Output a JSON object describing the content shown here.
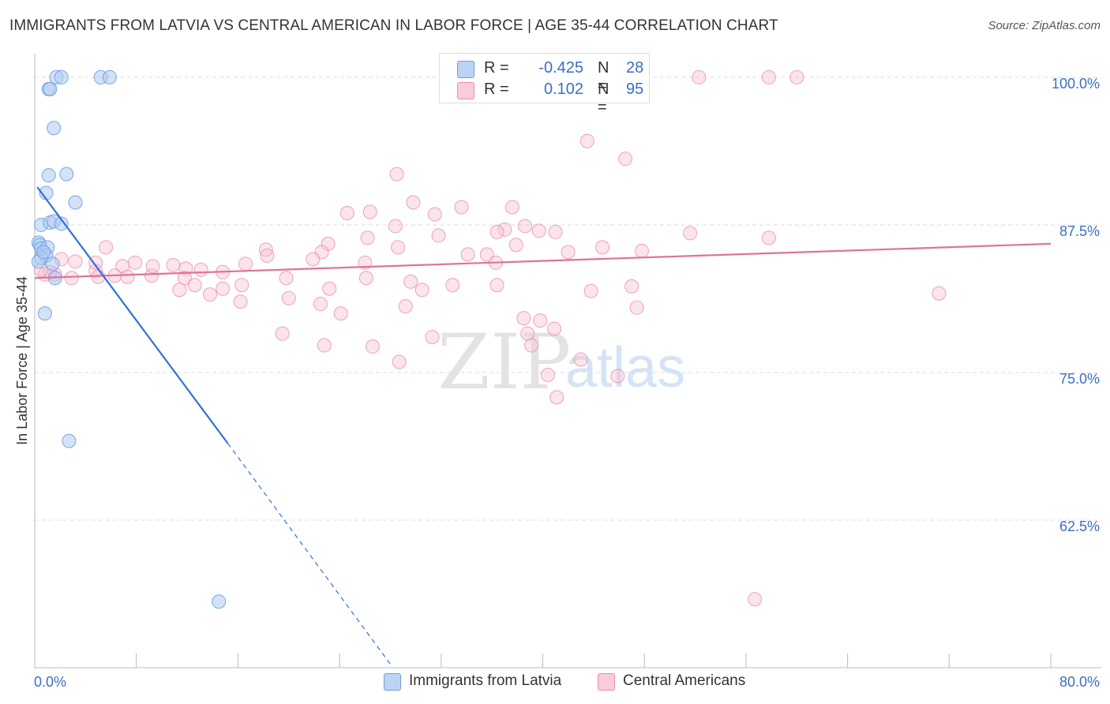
{
  "header": {
    "title": "IMMIGRANTS FROM LATVIA VS CENTRAL AMERICAN IN LABOR FORCE | AGE 35-44 CORRELATION CHART",
    "source": "Source: ZipAtlas.com"
  },
  "watermark": {
    "zip": "ZIP",
    "atlas": "atlas"
  },
  "legend": {
    "rows": [
      {
        "r_label": "R =",
        "r_value": "-0.425",
        "n_label": "N =",
        "n_value": "28"
      },
      {
        "r_label": "R =",
        "r_value": "0.102",
        "n_label": "N =",
        "n_value": "95"
      }
    ]
  },
  "bottom_legend": {
    "series1": "Immigrants from Latvia",
    "series2": "Central Americans"
  },
  "colors": {
    "blue_fill": "#aecbf0",
    "blue_stroke": "#6a9fe0",
    "blue_line": "#2f72d6",
    "pink_fill": "#f8c3d2",
    "pink_stroke": "#e98fab",
    "pink_line": "#e0729a",
    "axis_label": "#3a6fc4",
    "grid": "#dddddd"
  },
  "chart_data": {
    "type": "scatter",
    "title": "IMMIGRANTS FROM LATVIA VS CENTRAL AMERICAN IN LABOR FORCE | AGE 35-44 CORRELATION CHART",
    "xlabel": "",
    "ylabel": "In Labor Force | Age 35-44",
    "xlim": [
      0,
      80
    ],
    "ylim": [
      50,
      102
    ],
    "x_tick_labels": [
      "0.0%",
      "80.0%"
    ],
    "y_ticks": [
      62.5,
      75.0,
      87.5,
      100.0
    ],
    "y_tick_labels": [
      "62.5%",
      "75.0%",
      "87.5%",
      "100.0%"
    ],
    "grid": "horizontal dashed",
    "series": [
      {
        "name": "Immigrants from Latvia",
        "r": -0.425,
        "n": 28,
        "trend": {
          "x0": 0.2,
          "y0": 90.7,
          "x1": 15.2,
          "y1": 69.0,
          "dash_to_x": 28.0,
          "dash_to_y": 50.3
        },
        "points": [
          [
            1.7,
            100.0
          ],
          [
            2.1,
            100.0
          ],
          [
            5.2,
            100.0
          ],
          [
            5.9,
            100.0
          ],
          [
            1.1,
            99.0
          ],
          [
            1.2,
            99.0
          ],
          [
            1.5,
            95.7
          ],
          [
            1.1,
            91.7
          ],
          [
            2.5,
            91.8
          ],
          [
            0.9,
            90.2
          ],
          [
            3.2,
            89.4
          ],
          [
            0.5,
            87.5
          ],
          [
            1.2,
            87.7
          ],
          [
            1.5,
            87.8
          ],
          [
            2.1,
            87.6
          ],
          [
            0.3,
            86.0
          ],
          [
            0.4,
            85.8
          ],
          [
            0.5,
            85.5
          ],
          [
            1.0,
            85.6
          ],
          [
            0.9,
            84.9
          ],
          [
            0.5,
            84.7
          ],
          [
            0.3,
            84.4
          ],
          [
            1.6,
            83.0
          ],
          [
            0.8,
            80.0
          ],
          [
            2.7,
            69.2
          ],
          [
            14.5,
            55.6
          ],
          [
            0.7,
            85.2
          ],
          [
            1.4,
            84.2
          ]
        ]
      },
      {
        "name": "Central Americans",
        "r": 0.102,
        "n": 95,
        "trend": {
          "x0": 0.0,
          "y0": 83.0,
          "x1": 80.0,
          "y1": 85.9
        },
        "points": [
          [
            52.3,
            100.0
          ],
          [
            57.8,
            100.0
          ],
          [
            60.0,
            100.0
          ],
          [
            43.5,
            94.6
          ],
          [
            46.5,
            93.1
          ],
          [
            28.5,
            91.8
          ],
          [
            29.8,
            89.4
          ],
          [
            33.6,
            89.0
          ],
          [
            37.6,
            89.0
          ],
          [
            26.4,
            88.6
          ],
          [
            24.6,
            88.5
          ],
          [
            31.5,
            88.4
          ],
          [
            38.6,
            87.4
          ],
          [
            39.7,
            87.0
          ],
          [
            28.4,
            87.4
          ],
          [
            37.0,
            87.1
          ],
          [
            36.4,
            86.9
          ],
          [
            41.0,
            86.9
          ],
          [
            51.6,
            86.8
          ],
          [
            31.8,
            86.6
          ],
          [
            26.2,
            86.4
          ],
          [
            28.6,
            85.6
          ],
          [
            23.1,
            85.9
          ],
          [
            37.9,
            85.8
          ],
          [
            44.7,
            85.6
          ],
          [
            47.8,
            85.3
          ],
          [
            42.0,
            85.2
          ],
          [
            35.6,
            85.0
          ],
          [
            18.2,
            85.4
          ],
          [
            22.6,
            85.2
          ],
          [
            34.1,
            85.0
          ],
          [
            21.9,
            84.6
          ],
          [
            26.0,
            84.3
          ],
          [
            18.3,
            84.9
          ],
          [
            5.6,
            85.6
          ],
          [
            36.3,
            84.3
          ],
          [
            10.9,
            84.1
          ],
          [
            7.9,
            84.3
          ],
          [
            6.9,
            84.0
          ],
          [
            11.9,
            83.8
          ],
          [
            13.1,
            83.7
          ],
          [
            14.8,
            83.5
          ],
          [
            16.6,
            84.2
          ],
          [
            3.2,
            84.4
          ],
          [
            4.8,
            83.6
          ],
          [
            2.1,
            84.6
          ],
          [
            1.6,
            83.3
          ],
          [
            0.8,
            83.3
          ],
          [
            2.9,
            83.0
          ],
          [
            5.0,
            83.1
          ],
          [
            6.3,
            83.2
          ],
          [
            7.3,
            83.1
          ],
          [
            9.2,
            83.2
          ],
          [
            11.8,
            83.0
          ],
          [
            19.8,
            83.0
          ],
          [
            26.1,
            83.0
          ],
          [
            29.6,
            82.7
          ],
          [
            32.9,
            82.4
          ],
          [
            36.4,
            82.4
          ],
          [
            30.5,
            82.0
          ],
          [
            12.6,
            82.4
          ],
          [
            14.8,
            82.1
          ],
          [
            16.3,
            82.4
          ],
          [
            11.4,
            82.0
          ],
          [
            13.8,
            81.6
          ],
          [
            23.2,
            82.1
          ],
          [
            24.1,
            80.0
          ],
          [
            20.0,
            81.3
          ],
          [
            22.5,
            80.8
          ],
          [
            43.8,
            81.9
          ],
          [
            47.4,
            80.5
          ],
          [
            29.2,
            80.6
          ],
          [
            38.5,
            79.6
          ],
          [
            40.9,
            78.7
          ],
          [
            47.0,
            82.3
          ],
          [
            57.8,
            86.4
          ],
          [
            71.2,
            81.7
          ],
          [
            43.0,
            76.1
          ],
          [
            16.2,
            81.0
          ],
          [
            19.5,
            78.3
          ],
          [
            22.8,
            77.3
          ],
          [
            26.6,
            77.2
          ],
          [
            28.7,
            75.9
          ],
          [
            31.3,
            78.0
          ],
          [
            38.8,
            78.3
          ],
          [
            39.1,
            77.3
          ],
          [
            40.4,
            74.8
          ],
          [
            41.1,
            72.9
          ],
          [
            45.9,
            74.7
          ],
          [
            4.8,
            84.3
          ],
          [
            1.2,
            83.5
          ],
          [
            0.5,
            83.7
          ],
          [
            9.3,
            84.0
          ],
          [
            39.8,
            79.4
          ],
          [
            56.7,
            55.8
          ]
        ]
      }
    ]
  }
}
